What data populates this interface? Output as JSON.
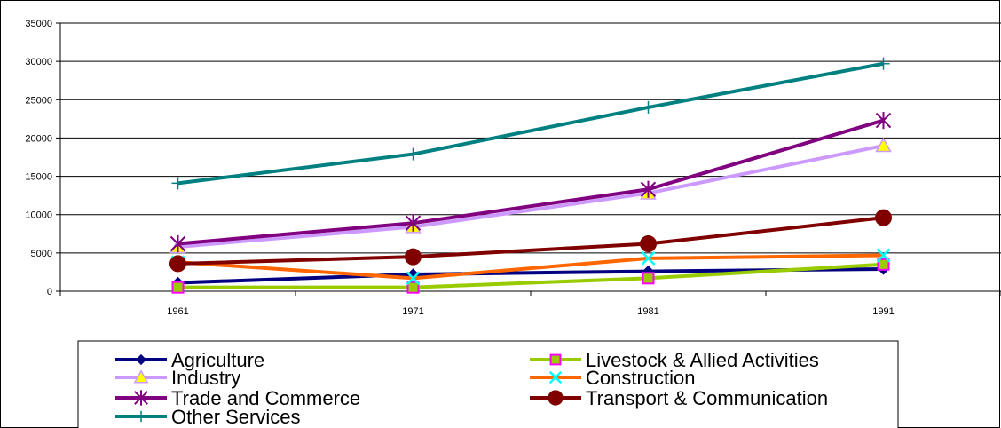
{
  "chart_data": {
    "type": "line",
    "title": "",
    "xlabel": "",
    "ylabel": "",
    "categories": [
      "1961",
      "1971",
      "1981",
      "1991"
    ],
    "ylim": [
      0,
      35000
    ],
    "yticks": [
      0,
      5000,
      10000,
      15000,
      20000,
      25000,
      30000,
      35000
    ],
    "grid": "horizontal",
    "legend": "bottom",
    "series": [
      {
        "name": "Agriculture",
        "values": [
          1100,
          2200,
          2600,
          2900
        ],
        "color": "#000080",
        "marker": "diamond"
      },
      {
        "name": "Livestock & Allied Activities",
        "values": [
          500,
          500,
          1700,
          3500
        ],
        "color": "#99CC00",
        "marker": "square"
      },
      {
        "name": "Industry",
        "values": [
          5800,
          8400,
          12800,
          19000
        ],
        "color": "#CC99FF",
        "marker": "triangle"
      },
      {
        "name": "Construction",
        "values": [
          3800,
          1700,
          4300,
          4700
        ],
        "color": "#FF6600",
        "marker": "x"
      },
      {
        "name": "Trade and Commerce",
        "values": [
          6200,
          8900,
          13300,
          22300
        ],
        "color": "#800080",
        "marker": "asterisk"
      },
      {
        "name": "Transport & Communication",
        "values": [
          3600,
          4500,
          6200,
          9600
        ],
        "color": "#800000",
        "marker": "circle"
      },
      {
        "name": "Other Services",
        "values": [
          14100,
          17900,
          24000,
          29700
        ],
        "color": "#008080",
        "marker": "plus"
      }
    ]
  }
}
